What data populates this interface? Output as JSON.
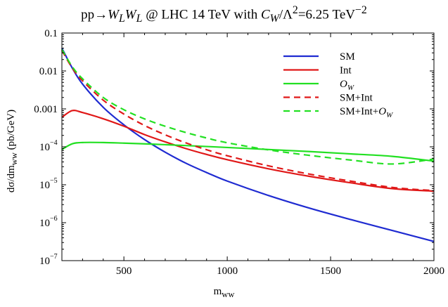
{
  "chart_data": {
    "type": "line",
    "title": "pp→W_L W_L @ LHC 14 TeV with C_W/Λ²=6.25 TeV⁻²",
    "title_parts": {
      "pre": "pp→",
      "W": "W",
      "L": "L",
      "mid": " @ LHC 14 TeV with ",
      "C": "C",
      "sub_W": "W",
      "slash": "/Λ",
      "sq": "2",
      "eq": "=6.25 TeV",
      "neg2": "−2"
    },
    "xlabel_main": "m",
    "xlabel_sub": "ww",
    "ylabel": "dσ/dm",
    "ylabel_sub": "ww",
    "ylabel_unit": " (pb/GeV)",
    "xlim": [
      200,
      2000
    ],
    "ylim": [
      1e-07,
      0.1
    ],
    "yscale": "log",
    "grid": false,
    "legend_position": "top-right",
    "x_ticks": [
      500,
      1000,
      1500,
      2000
    ],
    "y_ticks": [
      {
        "value": 0.1,
        "label": "0.1"
      },
      {
        "value": 0.01,
        "label": "0.01"
      },
      {
        "value": 0.001,
        "label": "0.001"
      },
      {
        "value": 0.0001,
        "base": "10",
        "exp": "−4"
      },
      {
        "value": 1e-05,
        "base": "10",
        "exp": "−5"
      },
      {
        "value": 1e-06,
        "base": "10",
        "exp": "−6"
      },
      {
        "value": 1e-07,
        "base": "10",
        "exp": "−7"
      }
    ],
    "x": [
      200,
      250,
      300,
      400,
      500,
      600,
      700,
      800,
      900,
      1000,
      1200,
      1400,
      1600,
      1800,
      2000
    ],
    "series": [
      {
        "name": "SM",
        "color": "#1f2bd1",
        "dash": false,
        "values": [
          0.04,
          0.012,
          0.0045,
          0.0011,
          0.00038,
          0.000155,
          7.2e-05,
          3.7e-05,
          2.1e-05,
          1.25e-05,
          5.2e-06,
          2.4e-06,
          1.2e-06,
          6.2e-07,
          3.2e-07
        ]
      },
      {
        "name": "Int",
        "color": "#e01818",
        "dash": false,
        "values": [
          0.0006,
          0.0009,
          0.0008,
          0.00055,
          0.00035,
          0.00021,
          0.000135,
          8.99e-05,
          6.29e-05,
          4.57e-05,
          2.63e-05,
          1.66e-05,
          1.12e-05,
          7.9e-06,
          6.8e-06
        ]
      },
      {
        "name": "O_W",
        "color": "#22e022",
        "dash": false,
        "values": [
          8.5e-05,
          0.00012,
          0.00013,
          0.00013,
          0.000125,
          0.00012,
          0.000114,
          0.000108,
          0.000102,
          9.6e-05,
          8.5e-05,
          7.5e-05,
          6.5e-05,
          5.6e-05,
          4.2e-05
        ]
      },
      {
        "name": "SM+Int",
        "color": "#e01818",
        "dash": true,
        "values": [
          0.035,
          0.012,
          0.0055,
          0.0017,
          0.00073,
          0.000365,
          0.000207,
          0.000127,
          8.39e-05,
          5.82e-05,
          3.15e-05,
          1.9e-05,
          1.24e-05,
          8.5e-06,
          7e-06
        ]
      },
      {
        "name": "SM+Int+O_W",
        "color": "#22e022",
        "dash": true,
        "values": [
          0.037,
          0.013,
          0.0062,
          0.002,
          0.00095,
          0.000545,
          0.000348,
          0.000238,
          0.000171,
          0.000128,
          8.3e-05,
          5.93e-05,
          4.47e-05,
          3.53e-05,
          4.78e-05
        ]
      }
    ],
    "legend": [
      {
        "label": "SM",
        "color": "#1f2bd1",
        "dash": false
      },
      {
        "label": "Int",
        "color": "#e01818",
        "dash": false
      },
      {
        "label_main": "O",
        "label_sub": "W",
        "color": "#22e022",
        "dash": false
      },
      {
        "label": "SM+Int",
        "color": "#e01818",
        "dash": true
      },
      {
        "label_pre": "SM+Int+",
        "label_main": "O",
        "label_sub": "W",
        "color": "#22e022",
        "dash": true
      }
    ]
  }
}
